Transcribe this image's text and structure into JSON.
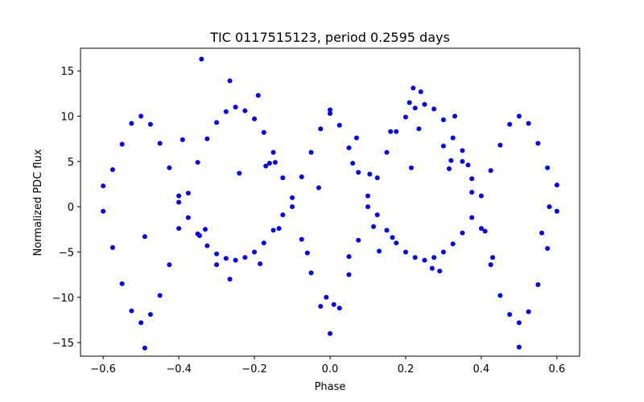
{
  "chart_data": {
    "type": "scatter",
    "title": "TIC 0117515123, period 0.2595 days",
    "xlabel": "Phase",
    "ylabel": "Normalized PDC flux",
    "xlim": [
      -0.66,
      0.66
    ],
    "ylim": [
      -16.5,
      17.5
    ],
    "xticks": [
      -0.6,
      -0.4,
      -0.2,
      0.0,
      0.2,
      0.4,
      0.6
    ],
    "xtick_labels": [
      "−0.6",
      "−0.4",
      "−0.2",
      "0.0",
      "0.2",
      "0.4",
      "0.6"
    ],
    "yticks": [
      -15,
      -10,
      -5,
      0,
      5,
      10,
      15
    ],
    "ytick_labels": [
      "−15",
      "−10",
      "−5",
      "0",
      "5",
      "10",
      "15"
    ],
    "grid": false,
    "marker_color": "#0000ff",
    "series": [
      {
        "points": [
          [
            -0.6,
            2.3
          ],
          [
            -0.575,
            4.1
          ],
          [
            -0.55,
            6.9
          ],
          [
            -0.525,
            9.2
          ],
          [
            -0.5,
            10.0
          ],
          [
            -0.475,
            9.1
          ],
          [
            -0.45,
            7.0
          ],
          [
            -0.425,
            4.3
          ],
          [
            -0.4,
            1.2
          ],
          [
            -0.375,
            -1.2
          ],
          [
            -0.35,
            -3.0
          ],
          [
            -0.325,
            -4.3
          ],
          [
            -0.3,
            -5.2
          ],
          [
            -0.275,
            -5.7
          ],
          [
            -0.25,
            -5.9
          ],
          [
            -0.225,
            -5.6
          ],
          [
            -0.2,
            -5.0
          ],
          [
            -0.175,
            -4.0
          ],
          [
            -0.15,
            -2.6
          ],
          [
            -0.125,
            -0.9
          ],
          [
            -0.1,
            1.0
          ],
          [
            -0.075,
            3.3
          ],
          [
            -0.05,
            6.0
          ],
          [
            -0.025,
            8.6
          ],
          [
            0.0,
            10.3
          ],
          [
            0.025,
            9.0
          ],
          [
            0.05,
            6.5
          ],
          [
            0.075,
            3.8
          ],
          [
            0.1,
            1.2
          ],
          [
            0.125,
            -0.9
          ],
          [
            0.15,
            -2.6
          ],
          [
            0.175,
            -4.0
          ],
          [
            0.2,
            -5.0
          ],
          [
            0.225,
            -5.6
          ],
          [
            0.25,
            -5.9
          ],
          [
            0.275,
            -5.6
          ],
          [
            0.3,
            -5.0
          ],
          [
            0.325,
            -4.1
          ],
          [
            0.35,
            -2.9
          ],
          [
            0.375,
            -1.2
          ],
          [
            0.4,
            1.2
          ],
          [
            0.425,
            4.0
          ],
          [
            0.45,
            6.8
          ],
          [
            0.475,
            9.1
          ],
          [
            0.5,
            10.0
          ],
          [
            0.525,
            9.2
          ],
          [
            0.55,
            7.0
          ],
          [
            0.575,
            4.3
          ],
          [
            0.6,
            2.4
          ]
        ]
      },
      {
        "points": [
          [
            -0.6,
            -0.5
          ],
          [
            -0.575,
            -4.5
          ],
          [
            -0.55,
            -8.5
          ],
          [
            -0.525,
            -11.5
          ],
          [
            -0.5,
            -12.8
          ],
          [
            -0.475,
            -11.9
          ],
          [
            -0.45,
            -9.8
          ],
          [
            -0.425,
            -6.4
          ],
          [
            -0.4,
            -2.4
          ],
          [
            -0.375,
            1.5
          ],
          [
            -0.35,
            4.9
          ],
          [
            -0.325,
            7.5
          ],
          [
            -0.3,
            9.3
          ],
          [
            -0.275,
            10.5
          ],
          [
            -0.25,
            11.0
          ],
          [
            -0.225,
            10.6
          ],
          [
            -0.2,
            9.7
          ],
          [
            -0.175,
            8.2
          ],
          [
            -0.15,
            6.0
          ],
          [
            -0.125,
            3.2
          ],
          [
            -0.1,
            0.0
          ],
          [
            -0.075,
            -3.6
          ],
          [
            -0.05,
            -7.3
          ],
          [
            -0.025,
            -11.0
          ],
          [
            0.0,
            -14.0
          ],
          [
            0.025,
            -11.2
          ],
          [
            0.05,
            -7.5
          ],
          [
            0.075,
            -3.7
          ],
          [
            0.1,
            0.0
          ],
          [
            0.125,
            3.2
          ],
          [
            0.15,
            6.0
          ],
          [
            0.175,
            8.3
          ],
          [
            0.2,
            9.9
          ],
          [
            0.225,
            10.9
          ],
          [
            0.25,
            11.3
          ],
          [
            0.275,
            10.8
          ],
          [
            0.3,
            9.6
          ],
          [
            0.325,
            7.6
          ],
          [
            0.35,
            5.0
          ],
          [
            0.375,
            1.6
          ],
          [
            0.4,
            -2.4
          ],
          [
            0.425,
            -6.4
          ],
          [
            0.45,
            -9.8
          ],
          [
            0.475,
            -11.9
          ],
          [
            0.5,
            -12.8
          ],
          [
            0.525,
            -11.6
          ],
          [
            0.55,
            -8.6
          ],
          [
            0.575,
            -4.6
          ],
          [
            0.6,
            -0.5
          ]
        ]
      },
      {
        "points": [
          [
            -0.34,
            16.3
          ],
          [
            -0.265,
            13.9
          ],
          [
            -0.19,
            12.3
          ],
          [
            -0.49,
            -15.6
          ],
          [
            -0.49,
            -3.3
          ],
          [
            -0.4,
            0.5
          ],
          [
            -0.39,
            7.4
          ],
          [
            -0.345,
            -3.2
          ],
          [
            -0.33,
            -2.5
          ],
          [
            -0.3,
            -6.4
          ],
          [
            -0.265,
            -8.0
          ],
          [
            -0.24,
            3.7
          ],
          [
            -0.185,
            -6.3
          ],
          [
            -0.17,
            4.5
          ],
          [
            -0.16,
            4.8
          ],
          [
            -0.145,
            4.9
          ],
          [
            -0.135,
            -2.4
          ],
          [
            -0.06,
            -5.1
          ],
          [
            -0.03,
            2.1
          ],
          [
            -0.01,
            -10.0
          ],
          [
            0.0,
            10.7
          ],
          [
            0.01,
            -10.8
          ],
          [
            0.05,
            -5.5
          ],
          [
            0.06,
            4.8
          ],
          [
            0.07,
            7.6
          ],
          [
            0.105,
            3.6
          ],
          [
            0.115,
            -2.2
          ],
          [
            0.13,
            -4.9
          ],
          [
            0.16,
            8.3
          ],
          [
            0.165,
            -3.4
          ],
          [
            0.21,
            11.5
          ],
          [
            0.215,
            4.3
          ],
          [
            0.22,
            13.1
          ],
          [
            0.235,
            8.6
          ],
          [
            0.24,
            12.7
          ],
          [
            0.27,
            -6.8
          ],
          [
            0.29,
            -7.1
          ],
          [
            0.3,
            6.7
          ],
          [
            0.315,
            4.2
          ],
          [
            0.32,
            5.1
          ],
          [
            0.33,
            10.0
          ],
          [
            0.35,
            6.2
          ],
          [
            0.365,
            4.6
          ],
          [
            0.375,
            3.1
          ],
          [
            0.41,
            -2.7
          ],
          [
            0.43,
            -5.6
          ],
          [
            0.5,
            -15.5
          ],
          [
            0.56,
            -2.9
          ],
          [
            0.58,
            0.0
          ]
        ]
      }
    ]
  }
}
